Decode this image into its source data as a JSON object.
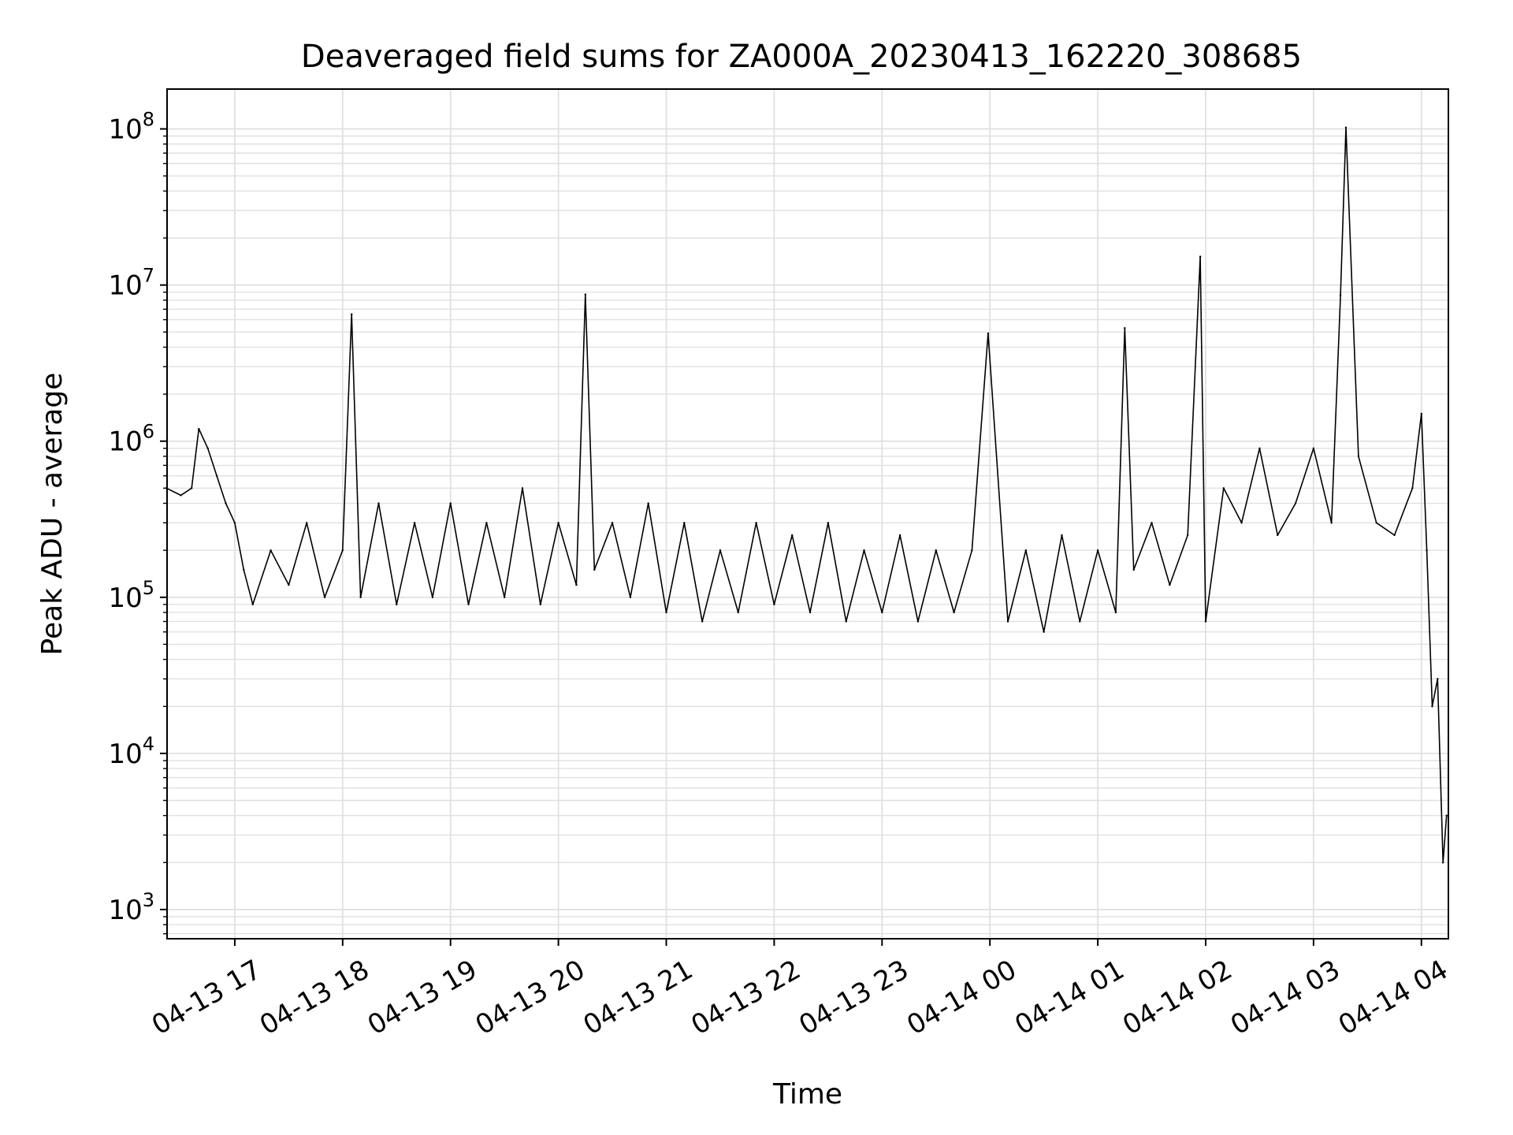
{
  "chart_data": {
    "type": "line",
    "title": "Deaveraged field sums for ZA000A_20230413_162220_308685",
    "xlabel": "Time",
    "ylabel": "Peak ADU - average",
    "y_scale": "log",
    "ylim": [
      650,
      180000000
    ],
    "xlim": [
      "2023-04-13 16:22:20",
      "2023-04-14 04:15:00"
    ],
    "grid": true,
    "line_color": "#000000",
    "grid_color": "#e0e0e0",
    "x_ticks": [
      "04-13 17",
      "04-13 18",
      "04-13 19",
      "04-13 20",
      "04-13 21",
      "04-13 22",
      "04-13 23",
      "04-14 00",
      "04-14 01",
      "04-14 02",
      "04-14 03",
      "04-14 04"
    ],
    "x_tick_times": [
      "2023-04-13 17:00",
      "2023-04-13 18:00",
      "2023-04-13 19:00",
      "2023-04-13 20:00",
      "2023-04-13 21:00",
      "2023-04-13 22:00",
      "2023-04-13 23:00",
      "2023-04-14 00:00",
      "2023-04-14 01:00",
      "2023-04-14 02:00",
      "2023-04-14 03:00",
      "2023-04-14 04:00"
    ],
    "y_ticks": [
      {
        "base": "10",
        "exp": "3",
        "value": 1000
      },
      {
        "base": "10",
        "exp": "4",
        "value": 10000
      },
      {
        "base": "10",
        "exp": "5",
        "value": 100000
      },
      {
        "base": "10",
        "exp": "6",
        "value": 1000000
      },
      {
        "base": "10",
        "exp": "7",
        "value": 10000000
      },
      {
        "base": "10",
        "exp": "8",
        "value": 100000000
      }
    ],
    "series": [
      {
        "x": [
          "2023-04-13 16:22",
          "2023-04-13 16:30",
          "2023-04-13 16:36",
          "2023-04-13 16:40",
          "2023-04-13 16:45",
          "2023-04-13 16:50",
          "2023-04-13 16:55",
          "2023-04-13 17:00",
          "2023-04-13 17:05",
          "2023-04-13 17:10",
          "2023-04-13 17:20",
          "2023-04-13 17:30",
          "2023-04-13 17:40",
          "2023-04-13 17:50",
          "2023-04-13 18:00",
          "2023-04-13 18:05",
          "2023-04-13 18:10",
          "2023-04-13 18:20",
          "2023-04-13 18:30",
          "2023-04-13 18:40",
          "2023-04-13 18:50",
          "2023-04-13 19:00",
          "2023-04-13 19:10",
          "2023-04-13 19:20",
          "2023-04-13 19:30",
          "2023-04-13 19:40",
          "2023-04-13 19:50",
          "2023-04-13 20:00",
          "2023-04-13 20:10",
          "2023-04-13 20:15",
          "2023-04-13 20:20",
          "2023-04-13 20:30",
          "2023-04-13 20:40",
          "2023-04-13 20:50",
          "2023-04-13 21:00",
          "2023-04-13 21:10",
          "2023-04-13 21:20",
          "2023-04-13 21:30",
          "2023-04-13 21:40",
          "2023-04-13 21:50",
          "2023-04-13 22:00",
          "2023-04-13 22:10",
          "2023-04-13 22:20",
          "2023-04-13 22:30",
          "2023-04-13 22:40",
          "2023-04-13 22:50",
          "2023-04-13 23:00",
          "2023-04-13 23:10",
          "2023-04-13 23:20",
          "2023-04-13 23:30",
          "2023-04-13 23:40",
          "2023-04-13 23:50",
          "2023-04-13 23:59",
          "2023-04-14 00:10",
          "2023-04-14 00:20",
          "2023-04-14 00:30",
          "2023-04-14 00:40",
          "2023-04-14 00:50",
          "2023-04-14 01:00",
          "2023-04-14 01:10",
          "2023-04-14 01:15",
          "2023-04-14 01:20",
          "2023-04-14 01:30",
          "2023-04-14 01:40",
          "2023-04-14 01:50",
          "2023-04-14 01:57",
          "2023-04-14 02:00",
          "2023-04-14 02:10",
          "2023-04-14 02:20",
          "2023-04-14 02:30",
          "2023-04-14 02:40",
          "2023-04-14 02:50",
          "2023-04-14 03:00",
          "2023-04-14 03:10",
          "2023-04-14 03:15",
          "2023-04-14 03:18",
          "2023-04-14 03:25",
          "2023-04-14 03:35",
          "2023-04-14 03:45",
          "2023-04-14 03:55",
          "2023-04-14 04:00",
          "2023-04-14 04:03",
          "2023-04-14 04:06",
          "2023-04-14 04:09",
          "2023-04-14 04:12",
          "2023-04-14 04:14"
        ],
        "y": [
          500000,
          450000,
          500000,
          1200000,
          900000,
          600000,
          400000,
          300000,
          150000,
          90000,
          200000,
          120000,
          300000,
          100000,
          200000,
          6500000,
          100000,
          400000,
          90000,
          300000,
          100000,
          400000,
          90000,
          300000,
          100000,
          500000,
          90000,
          300000,
          120000,
          8700000,
          150000,
          300000,
          100000,
          400000,
          80000,
          300000,
          70000,
          200000,
          80000,
          300000,
          90000,
          250000,
          80000,
          300000,
          70000,
          200000,
          80000,
          250000,
          70000,
          200000,
          80000,
          200000,
          4900000,
          70000,
          200000,
          60000,
          250000,
          70000,
          200000,
          80000,
          5300000,
          150000,
          300000,
          120000,
          250000,
          15200000,
          70000,
          500000,
          300000,
          900000,
          250000,
          400000,
          900000,
          300000,
          8600000,
          102000000,
          800000,
          300000,
          250000,
          500000,
          1500000,
          200000,
          20000,
          30000,
          2000,
          4000
        ]
      }
    ]
  }
}
